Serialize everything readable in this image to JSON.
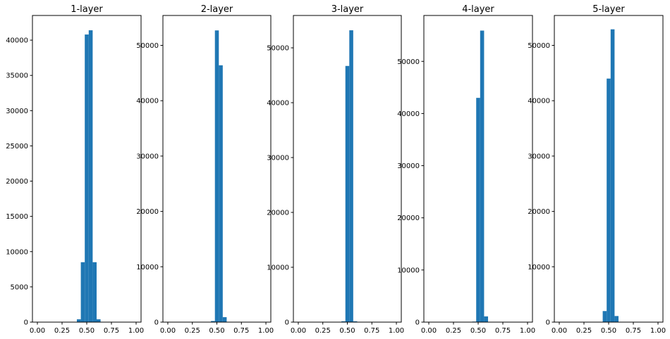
{
  "chart_data": [
    {
      "type": "bar",
      "title": "1-layer",
      "bar_color": "#1f77b4",
      "xlim": [
        -0.05,
        1.05
      ],
      "ylim": [
        0,
        43500
      ],
      "x_ticks": [
        0.0,
        0.25,
        0.5,
        0.75,
        1.0
      ],
      "x_tick_labels": [
        "0.00",
        "0.25",
        "0.50",
        "0.75",
        "1.00"
      ],
      "y_ticks": [
        0,
        5000,
        10000,
        15000,
        20000,
        25000,
        30000,
        35000,
        40000
      ],
      "y_tick_labels": [
        "0",
        "5000",
        "10000",
        "15000",
        "20000",
        "25000",
        "30000",
        "35000",
        "40000"
      ],
      "bins": [
        {
          "x0": 0.4,
          "x1": 0.44,
          "value": 400
        },
        {
          "x0": 0.44,
          "x1": 0.48,
          "value": 8500
        },
        {
          "x0": 0.48,
          "x1": 0.52,
          "value": 40800
        },
        {
          "x0": 0.52,
          "x1": 0.56,
          "value": 41400
        },
        {
          "x0": 0.56,
          "x1": 0.6,
          "value": 8500
        },
        {
          "x0": 0.6,
          "x1": 0.64,
          "value": 400
        }
      ]
    },
    {
      "type": "bar",
      "title": "2-layer",
      "bar_color": "#1f77b4",
      "xlim": [
        -0.05,
        1.05
      ],
      "ylim": [
        0,
        55400
      ],
      "x_ticks": [
        0.0,
        0.25,
        0.5,
        0.75,
        1.0
      ],
      "x_tick_labels": [
        "0.00",
        "0.25",
        "0.50",
        "0.75",
        "1.00"
      ],
      "y_ticks": [
        0,
        10000,
        20000,
        30000,
        40000,
        50000
      ],
      "y_tick_labels": [
        "0",
        "10000",
        "20000",
        "30000",
        "40000",
        "50000"
      ],
      "bins": [
        {
          "x0": 0.44,
          "x1": 0.48,
          "value": 200
        },
        {
          "x0": 0.48,
          "x1": 0.52,
          "value": 52700
        },
        {
          "x0": 0.52,
          "x1": 0.56,
          "value": 46400
        },
        {
          "x0": 0.56,
          "x1": 0.6,
          "value": 900
        }
      ]
    },
    {
      "type": "bar",
      "title": "3-layer",
      "bar_color": "#1f77b4",
      "xlim": [
        -0.05,
        1.05
      ],
      "ylim": [
        0,
        55900
      ],
      "x_ticks": [
        0.0,
        0.25,
        0.5,
        0.75,
        1.0
      ],
      "x_tick_labels": [
        "0.00",
        "0.25",
        "0.50",
        "0.75",
        "1.00"
      ],
      "y_ticks": [
        0,
        10000,
        20000,
        30000,
        40000,
        50000
      ],
      "y_tick_labels": [
        "0",
        "10000",
        "20000",
        "30000",
        "40000",
        "50000"
      ],
      "bins": [
        {
          "x0": 0.44,
          "x1": 0.48,
          "value": 150
        },
        {
          "x0": 0.48,
          "x1": 0.52,
          "value": 46700
        },
        {
          "x0": 0.52,
          "x1": 0.56,
          "value": 53200
        },
        {
          "x0": 0.56,
          "x1": 0.6,
          "value": 150
        }
      ]
    },
    {
      "type": "bar",
      "title": "4-layer",
      "bar_color": "#1f77b4",
      "xlim": [
        -0.05,
        1.05
      ],
      "ylim": [
        0,
        58800
      ],
      "x_ticks": [
        0.0,
        0.25,
        0.5,
        0.75,
        1.0
      ],
      "x_tick_labels": [
        "0.00",
        "0.25",
        "0.50",
        "0.75",
        "1.00"
      ],
      "y_ticks": [
        0,
        10000,
        20000,
        30000,
        40000,
        50000
      ],
      "y_tick_labels": [
        "0",
        "10000",
        "20000",
        "30000",
        "40000",
        "50000"
      ],
      "bins": [
        {
          "x0": 0.44,
          "x1": 0.48,
          "value": 100
        },
        {
          "x0": 0.48,
          "x1": 0.52,
          "value": 43000
        },
        {
          "x0": 0.52,
          "x1": 0.56,
          "value": 55900
        },
        {
          "x0": 0.56,
          "x1": 0.6,
          "value": 1100
        }
      ]
    },
    {
      "type": "bar",
      "title": "5-layer",
      "bar_color": "#1f77b4",
      "xlim": [
        -0.05,
        1.05
      ],
      "ylim": [
        0,
        55400
      ],
      "x_ticks": [
        0.0,
        0.25,
        0.5,
        0.75,
        1.0
      ],
      "x_tick_labels": [
        "0.00",
        "0.25",
        "0.50",
        "0.75",
        "1.00"
      ],
      "y_ticks": [
        0,
        10000,
        20000,
        30000,
        40000,
        50000
      ],
      "y_tick_labels": [
        "0",
        "10000",
        "20000",
        "30000",
        "40000",
        "50000"
      ],
      "bins": [
        {
          "x0": 0.44,
          "x1": 0.48,
          "value": 2000
        },
        {
          "x0": 0.48,
          "x1": 0.52,
          "value": 44000
        },
        {
          "x0": 0.52,
          "x1": 0.56,
          "value": 52900
        },
        {
          "x0": 0.56,
          "x1": 0.6,
          "value": 1100
        }
      ]
    }
  ]
}
